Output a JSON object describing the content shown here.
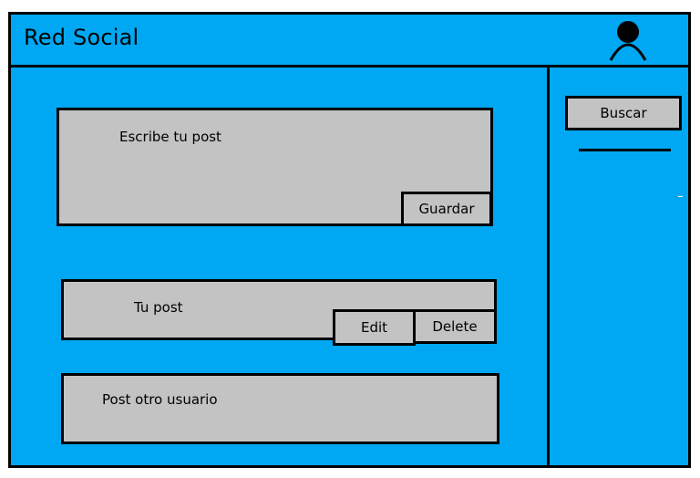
{
  "header": {
    "title": "Red Social",
    "avatar_icon": "user-avatar-icon"
  },
  "composer": {
    "placeholder": "Escribe tu post",
    "save_label": "Guardar"
  },
  "my_post": {
    "text": "Tu post",
    "edit_label": "Edit",
    "delete_label": "Delete"
  },
  "other_post": {
    "text": "Post otro usuario"
  },
  "sidebar": {
    "search_label": "Buscar"
  },
  "colors": {
    "background": "#00a8f3",
    "panel": "#c3c3c3",
    "border": "#000000"
  }
}
